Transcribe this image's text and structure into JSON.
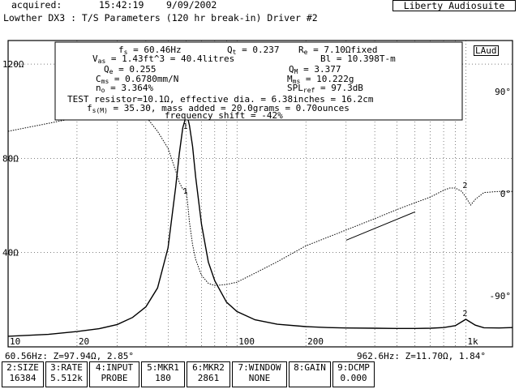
{
  "header": {
    "acquired_label": "acquired:",
    "time": "15:42:19",
    "date": "9/09/2002",
    "app": "Liberty Audiosuite",
    "title": "Lowther DX3 : T/S Parameters (120 hr break-in) Driver #2",
    "logo": "LAud"
  },
  "params": {
    "fs": "= 60.46Hz",
    "qt": "= 0.237",
    "re": "= 7.10Ωfixed",
    "vas": "= 1.43ft^3 = 40.4litres",
    "bl": "Bl = 10.398T-m",
    "qe": "= 0.255",
    "qm": "= 3.377",
    "cms": "= 0.6780mm/N",
    "mms": "= 10.222g",
    "no": "= 3.364%",
    "splref": "= 97.3dB",
    "test_line": "TEST resistor=10.1Ω, effective dia. = 6.38inches = 16.2cm",
    "fsm_line": "= 35.30, mass added = 20.0grams = 0.70ounces",
    "shift_line": "frequency shift = -42%"
  },
  "readouts": {
    "left": "60.56Hz: Z=97.94Ω, 2.85°",
    "right": "962.6Hz: Z=11.70Ω, 1.84°"
  },
  "fkeys": [
    {
      "label": "2:SIZE",
      "value": "16384"
    },
    {
      "label": "3:RATE",
      "value": "5.512k"
    },
    {
      "label": "4:INPUT",
      "value": "PROBE"
    },
    {
      "label": "5:MKR1",
      "value": "180"
    },
    {
      "label": "6:MKR2",
      "value": "2861"
    },
    {
      "label": "7:WINDOW",
      "value": "NONE"
    },
    {
      "label": "8:GAIN",
      "value": ""
    },
    {
      "label": "9:DCMP",
      "value": "0.000"
    }
  ],
  "chart_data": {
    "type": "line",
    "x_scale": "log",
    "xlim": [
      10,
      1600
    ],
    "ylim_left": [
      0,
      130
    ],
    "ylim_right": [
      -135,
      135
    ],
    "x_ticks": [
      "10",
      "20",
      "100",
      "200",
      "1k"
    ],
    "y_ticks_left": [
      "120Ω",
      "80Ω",
      "40Ω"
    ],
    "y_ticks_right": [
      "90°",
      "0°",
      "-90°"
    ],
    "grid": true,
    "markers": [
      "1",
      "2"
    ],
    "series": [
      {
        "x": [
          10,
          15,
          20,
          25,
          30,
          35,
          40,
          45,
          50,
          54,
          56,
          58,
          60,
          61,
          62,
          64,
          66,
          70,
          75,
          80,
          90,
          100,
          120,
          150,
          200,
          250,
          300,
          400,
          500,
          600,
          700,
          800,
          900,
          1000,
          1100,
          1200,
          1400,
          1600
        ],
        "values": [
          4.5,
          5.3,
          6.5,
          7.7,
          9.5,
          12.5,
          17,
          25,
          42,
          68,
          82,
          93,
          98,
          97,
          94,
          85,
          72,
          52,
          36,
          28,
          19,
          15,
          11.5,
          9.6,
          8.6,
          8.2,
          8.0,
          7.9,
          7.8,
          7.8,
          7.9,
          8.2,
          9.0,
          11.7,
          9.2,
          8.1,
          8.0,
          8.2
        ]
      },
      {
        "x": [
          10,
          15,
          20,
          25,
          30,
          35,
          40,
          45,
          50,
          54,
          56,
          58,
          60,
          61,
          62,
          64,
          66,
          70,
          75,
          80,
          90,
          100,
          120,
          150,
          200,
          300,
          400,
          500,
          600,
          700,
          800,
          850,
          900,
          960,
          1000,
          1050,
          1100,
          1200,
          1400,
          1600
        ],
        "values": [
          55,
          62,
          67,
          72,
          74,
          73,
          68,
          55,
          40,
          20,
          10,
          4,
          3,
          -10,
          -25,
          -45,
          -58,
          -72,
          -79,
          -81,
          -80,
          -78,
          -70,
          -60,
          -46,
          -32,
          -22,
          -14,
          -8,
          -3,
          3,
          5,
          5,
          2,
          -3,
          -10,
          -5,
          1,
          2,
          2
        ]
      },
      {
        "x": [
          300,
          600
        ],
        "values": [
          -41,
          -16
        ]
      }
    ]
  }
}
